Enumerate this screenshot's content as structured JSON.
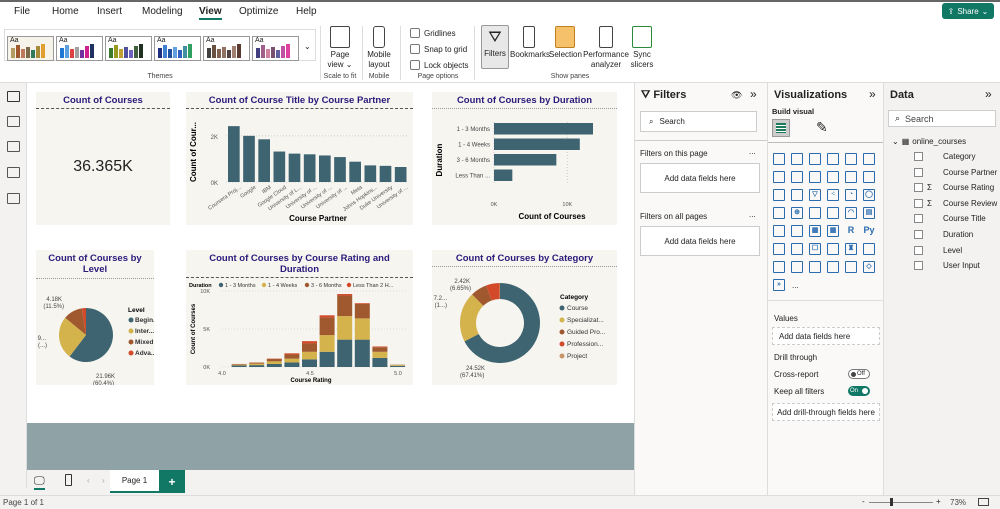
{
  "menu": {
    "tabs": [
      "File",
      "Home",
      "Insert",
      "Modeling",
      "View",
      "Optimize",
      "Help"
    ],
    "active": "View",
    "share": "Share"
  },
  "ribbon": {
    "themes_label": "Themes",
    "themes": [
      {
        "bg": "#f5f3ea",
        "colors": [
          "#b59a62",
          "#a0592f",
          "#c0785a",
          "#7d6a4a",
          "#2f7a5a",
          "#a88b3a",
          "#e0a030"
        ]
      },
      {
        "bg": "#fff",
        "colors": [
          "#1f77d4",
          "#5aa0e0",
          "#e04040",
          "#a0a0a0",
          "#7030a0",
          "#d02090",
          "#203060"
        ]
      },
      {
        "bg": "#fff",
        "colors": [
          "#3a7a2a",
          "#9a9a20",
          "#c0a030",
          "#5050a0",
          "#7060c0",
          "#406040",
          "#203020"
        ]
      },
      {
        "bg": "#fff",
        "colors": [
          "#203080",
          "#4080d0",
          "#2050a0",
          "#60a0e0",
          "#3060c0",
          "#4090a0",
          "#30a060"
        ]
      },
      {
        "bg": "#fff",
        "colors": [
          "#404040",
          "#6a5040",
          "#806050",
          "#907060",
          "#504040",
          "#a08070",
          "#5a3a30"
        ]
      },
      {
        "bg": "#fff",
        "colors": [
          "#404080",
          "#a0608a",
          "#d080a0",
          "#7a5070",
          "#6060a0",
          "#c050a0",
          "#e040a0"
        ]
      }
    ],
    "page_view": "Page view",
    "scale_to_fit": "Scale to fit",
    "mobile_layout": "Mobile layout",
    "mobile": "Mobile",
    "gridlines": "Gridlines",
    "snap_to_grid": "Snap to grid",
    "lock_objects": "Lock objects",
    "page_options": "Page options",
    "filters": "Filters",
    "bookmarks": "Bookmarks",
    "selection": "Selection",
    "performance": "Performance analyzer",
    "sync": "Sync slicers",
    "show_panes": "Show panes"
  },
  "colors": {
    "teal": "#3d6470",
    "yellow": "#d4b24c",
    "brown": "#a0592f",
    "red": "#d24a2a",
    "tan": "#c8956a",
    "accent": "#117865"
  },
  "kpi": {
    "title": "Count of Courses",
    "value": "36.365K"
  },
  "chart_data": [
    {
      "type": "bar",
      "title": "Count of Course Title by Course Partner",
      "xlabel": "Course Partner",
      "ylabel": "Count of Cour...",
      "categories": [
        "Coursera Proj...",
        "Google",
        "IBM",
        "Google Cloud",
        "University of L...",
        "University of ...",
        "University of ...",
        "University of ...",
        "Meta",
        "Johns Hopkins...",
        "Duke University",
        "University of ..."
      ],
      "values": [
        2420,
        2000,
        1850,
        1320,
        1230,
        1200,
        1150,
        1080,
        880,
        720,
        700,
        650
      ],
      "ylim": [
        0,
        2600
      ],
      "ticks": [
        "0K",
        "2K"
      ],
      "tick_values": [
        0,
        2000
      ]
    },
    {
      "type": "bar",
      "orientation": "horizontal",
      "title": "Count of Courses by Duration",
      "xlabel": "Count of Courses",
      "ylabel": "Duration",
      "categories": [
        "1 - 3 Months",
        "1 - 4 Weeks",
        "3 - 6 Months",
        "Less Than ..."
      ],
      "values": [
        13500,
        11700,
        8500,
        2500
      ],
      "xlim": [
        0,
        15000
      ],
      "ticks": [
        "0K",
        "10K"
      ],
      "tick_values": [
        0,
        10000
      ]
    },
    {
      "type": "pie",
      "title": "Count of Courses by Level",
      "legend_title": "Level",
      "labels": [
        "Begin...",
        "Inter...",
        "Mixed",
        "Adva..."
      ],
      "values": [
        21960,
        9310,
        4180,
        915
      ],
      "percent": [
        60.4,
        25.6,
        11.5,
        2.5
      ],
      "data_labels": [
        [
          "21.96K",
          "(60.4%)"
        ],
        [
          "9...",
          "(...)"
        ],
        [
          "4.18K",
          "(11.5%)"
        ],
        null
      ]
    },
    {
      "type": "bar",
      "stacked": true,
      "title": "Count of Courses by Course Rating and Duration",
      "xlabel": "Course Rating",
      "ylabel": "Count of Courses",
      "legend_title": "Duration",
      "x": [
        4.1,
        4.2,
        4.3,
        4.4,
        4.5,
        4.6,
        4.7,
        4.8,
        4.9,
        5.0
      ],
      "xlim": [
        4.0,
        5.0
      ],
      "xticks": [
        "4.0",
        "4.5",
        "5.0"
      ],
      "ylim": [
        0,
        10000
      ],
      "yticks": [
        "0K",
        "5K",
        "10K"
      ],
      "series": [
        {
          "name": "1 - 3 Months",
          "values": [
            200,
            250,
            400,
            600,
            1000,
            2000,
            3600,
            3600,
            1200,
            150
          ]
        },
        {
          "name": "1 - 4 Weeks",
          "values": [
            100,
            200,
            350,
            500,
            1000,
            2200,
            3100,
            2800,
            800,
            100
          ]
        },
        {
          "name": "3 - 6 Months",
          "values": [
            80,
            120,
            300,
            550,
            1100,
            2300,
            2700,
            1900,
            600,
            50
          ]
        },
        {
          "name": "Less Than 2 H...",
          "values": [
            20,
            30,
            50,
            150,
            300,
            300,
            200,
            100,
            100,
            0
          ]
        }
      ]
    },
    {
      "type": "pie",
      "donut": true,
      "title": "Count of Courses by Category",
      "legend_title": "Category",
      "labels": [
        "Course",
        "Specializat...",
        "Guided Pro...",
        "Profession...",
        "Project"
      ],
      "values": [
        24520,
        7380,
        2420,
        1970,
        75
      ],
      "percent": [
        67.41,
        20.3,
        6.65,
        5.4,
        0.2
      ],
      "data_labels": [
        [
          "24.52K",
          "(67.41%)"
        ],
        [
          "7.2...",
          "(1...)"
        ],
        [
          "2.42K",
          "(6.65%)"
        ],
        null,
        null
      ]
    }
  ],
  "filters": {
    "title": "Filters",
    "search": "Search",
    "on_page": "Filters on this page",
    "all_pages": "Filters on all pages",
    "add": "Add data fields here",
    "more": "..."
  },
  "viz": {
    "title": "Visualizations",
    "build": "Build visual",
    "values": "Values",
    "add": "Add data fields here",
    "drill": "Drill through",
    "cross": "Cross-report",
    "cross_state": "Off",
    "keep": "Keep all filters",
    "keep_state": "On",
    "add_drill": "Add drill-through fields here",
    "more": "...",
    "icons": [
      "stacked-bar",
      "stacked-column",
      "clustered-bar",
      "clustered-column",
      "100-bar",
      "100-column",
      "line",
      "area",
      "stacked-area",
      "ribbon",
      "line-column",
      "line-stacked",
      "waterfall-combo",
      "waterfall",
      "funnel",
      "scatter",
      "pie",
      "donut",
      "treemap",
      "map",
      "filled-map",
      "azure-map",
      "gauge",
      "card",
      "multi-card",
      "slicer",
      "table",
      "matrix",
      "R",
      "Py",
      "key-influencers",
      "decomposition",
      "qa",
      "narrative",
      "goals",
      "paginated",
      "power-apps",
      "power-automate",
      "smart",
      "image",
      "arcgis",
      "diamond",
      "chevron"
    ]
  },
  "data": {
    "title": "Data",
    "search": "Search",
    "table": "online_courses",
    "fields": [
      {
        "name": "Category",
        "sigma": false
      },
      {
        "name": "Course Partner",
        "sigma": false
      },
      {
        "name": "Course Rating",
        "sigma": true
      },
      {
        "name": "Course Review",
        "sigma": true
      },
      {
        "name": "Course Title",
        "sigma": false
      },
      {
        "name": "Duration",
        "sigma": false
      },
      {
        "name": "Level",
        "sigma": false
      },
      {
        "name": "User Input",
        "sigma": false
      }
    ]
  },
  "pages": {
    "tab": "Page 1",
    "add": "+"
  },
  "status": {
    "page": "Page 1 of 1",
    "zoom": "73%",
    "minus": "-",
    "plus": "+"
  }
}
